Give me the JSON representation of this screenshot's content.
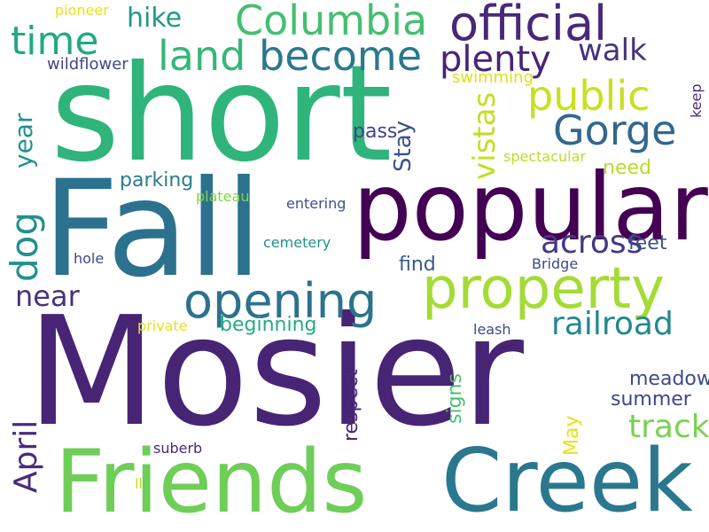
{
  "words": [
    {
      "text": "short",
      "color": "#2fb47c"
    },
    {
      "text": "Fall",
      "color": "#2c728e"
    },
    {
      "text": "Mosier",
      "color": "#482475"
    },
    {
      "text": "popular",
      "color": "#440154"
    },
    {
      "text": "Friends",
      "color": "#6ece58"
    },
    {
      "text": "Creek",
      "color": "#2a788e"
    },
    {
      "text": "property",
      "color": "#a5db36"
    },
    {
      "text": "opening",
      "color": "#2c728e"
    },
    {
      "text": "official",
      "color": "#482878"
    },
    {
      "text": "Columbia",
      "color": "#44bf70"
    },
    {
      "text": "become",
      "color": "#2a788e"
    },
    {
      "text": "land",
      "color": "#35b779"
    },
    {
      "text": "plenty",
      "color": "#482475"
    },
    {
      "text": "public",
      "color": "#c8e020"
    },
    {
      "text": "Gorge",
      "color": "#31688e"
    },
    {
      "text": "time",
      "color": "#22a884"
    },
    {
      "text": "hike",
      "color": "#1f988b"
    },
    {
      "text": "walk",
      "color": "#46337e"
    },
    {
      "text": "across",
      "color": "#443983"
    },
    {
      "text": "near",
      "color": "#46337e"
    },
    {
      "text": "railroad",
      "color": "#23888e"
    },
    {
      "text": "tracks",
      "color": "#7ad151"
    },
    {
      "text": "parking",
      "color": "#287c8e"
    },
    {
      "text": "need",
      "color": "#b5de2b"
    },
    {
      "text": "feet",
      "color": "#3b528b"
    },
    {
      "text": "find",
      "color": "#39568c"
    },
    {
      "text": "Bridge",
      "color": "#3e4989"
    },
    {
      "text": "beginning",
      "color": "#25ab82"
    },
    {
      "text": "meadows",
      "color": "#3e4a89"
    },
    {
      "text": "summer",
      "color": "#404688"
    },
    {
      "text": "wildflower",
      "color": "#3f4788"
    },
    {
      "text": "pioneer",
      "color": "#e7e419"
    },
    {
      "text": "swimming",
      "color": "#dde318"
    },
    {
      "text": "pass",
      "color": "#404688"
    },
    {
      "text": "spectacular",
      "color": "#b8de29"
    },
    {
      "text": "plateau",
      "color": "#84d44b"
    },
    {
      "text": "entering",
      "color": "#3b528b"
    },
    {
      "text": "cemetery",
      "color": "#21918c"
    },
    {
      "text": "hole",
      "color": "#3e4989"
    },
    {
      "text": "private",
      "color": "#e5e419"
    },
    {
      "text": "leash",
      "color": "#3e4a89"
    },
    {
      "text": "suberb",
      "color": "#482878"
    },
    {
      "text": "ll",
      "color": "#c2df23"
    },
    {
      "text": "dog",
      "color": "#21918c"
    },
    {
      "text": "April",
      "color": "#472d7b"
    },
    {
      "text": "Stay",
      "color": "#3b528b"
    },
    {
      "text": "vistas",
      "color": "#c2df23"
    },
    {
      "text": "year",
      "color": "#21918c"
    },
    {
      "text": "respect",
      "color": "#482878"
    },
    {
      "text": "signs",
      "color": "#4ac16d"
    },
    {
      "text": "May",
      "color": "#e5e419"
    },
    {
      "text": "keep",
      "color": "#472c7a"
    }
  ]
}
